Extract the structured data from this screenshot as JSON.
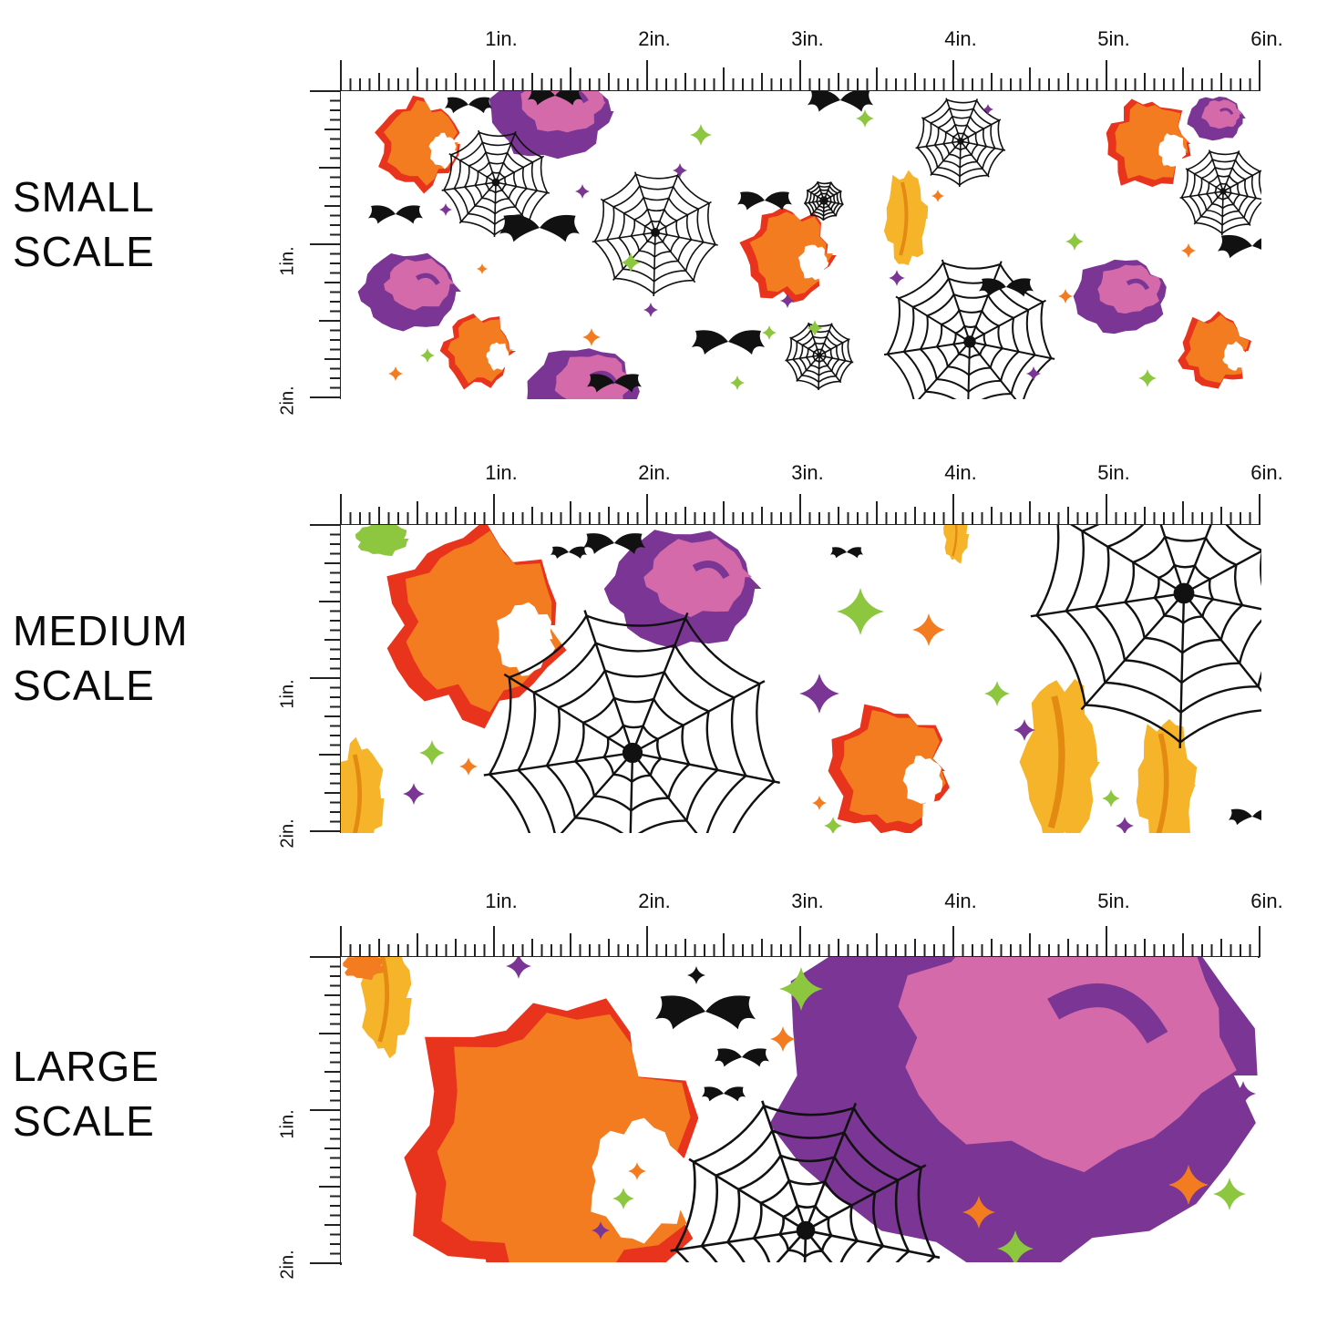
{
  "title_labels": [
    {
      "line1": "SMALL",
      "line2": "SCALE"
    },
    {
      "line1": "MEDIUM",
      "line2": "SCALE"
    },
    {
      "line1": "LARGE",
      "line2": "SCALE"
    }
  ],
  "ruler": {
    "horizontal_labels": [
      "1in.",
      "2in.",
      "3in.",
      "4in.",
      "5in.",
      "6in."
    ],
    "vertical_labels": [
      "1in.",
      "2in."
    ]
  },
  "colors": {
    "orange": "#f47c20",
    "red": "#e8341c",
    "purple": "#7b3595",
    "pink": "#d46aa9",
    "lime": "#8dc63f",
    "gold": "#f6b42a",
    "black": "#111111"
  }
}
